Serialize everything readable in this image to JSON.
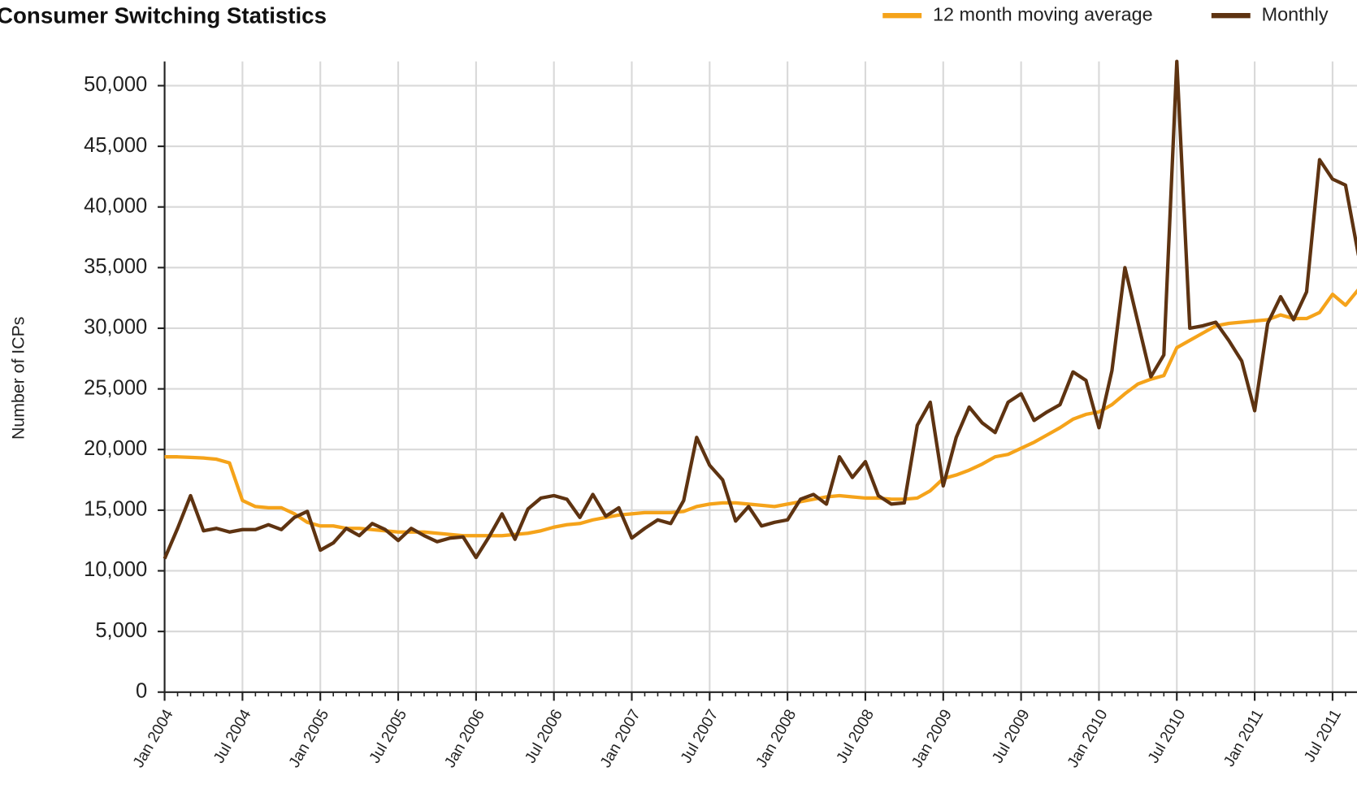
{
  "chart_data": {
    "type": "line",
    "title": "Consumer Switching Statistics",
    "y_label": "Number of ICPs",
    "x": [
      "2004-01",
      "2004-02",
      "2004-03",
      "2004-04",
      "2004-05",
      "2004-06",
      "2004-07",
      "2004-08",
      "2004-09",
      "2004-10",
      "2004-11",
      "2004-12",
      "2005-01",
      "2005-02",
      "2005-03",
      "2005-04",
      "2005-05",
      "2005-06",
      "2005-07",
      "2005-08",
      "2005-09",
      "2005-10",
      "2005-11",
      "2005-12",
      "2006-01",
      "2006-02",
      "2006-03",
      "2006-04",
      "2006-05",
      "2006-06",
      "2006-07",
      "2006-08",
      "2006-09",
      "2006-10",
      "2006-11",
      "2006-12",
      "2007-01",
      "2007-02",
      "2007-03",
      "2007-04",
      "2007-05",
      "2007-06",
      "2007-07",
      "2007-08",
      "2007-09",
      "2007-10",
      "2007-11",
      "2007-12",
      "2008-01",
      "2008-02",
      "2008-03",
      "2008-04",
      "2008-05",
      "2008-06",
      "2008-07",
      "2008-08",
      "2008-09",
      "2008-10",
      "2008-11",
      "2008-12",
      "2009-01",
      "2009-02",
      "2009-03",
      "2009-04",
      "2009-05",
      "2009-06",
      "2009-07",
      "2009-08",
      "2009-09",
      "2009-10",
      "2009-11",
      "2009-12",
      "2010-01",
      "2010-02",
      "2010-03",
      "2010-04",
      "2010-05",
      "2010-06",
      "2010-07",
      "2010-08",
      "2010-09",
      "2010-10",
      "2010-11",
      "2010-12",
      "2011-01",
      "2011-02",
      "2011-03",
      "2011-04",
      "2011-05",
      "2011-06",
      "2011-07",
      "2011-08",
      "2011-09"
    ],
    "series": [
      {
        "name": "12 month moving average",
        "color": "#f5a31a",
        "values": [
          19400,
          19400,
          19350,
          19300,
          19200,
          18900,
          15800,
          15300,
          15200,
          15200,
          14700,
          14000,
          13700,
          13700,
          13500,
          13500,
          13400,
          13300,
          13200,
          13200,
          13200,
          13100,
          13000,
          12900,
          12900,
          12900,
          12900,
          13000,
          13100,
          13300,
          13600,
          13800,
          13900,
          14200,
          14400,
          14600,
          14700,
          14800,
          14800,
          14800,
          14900,
          15300,
          15500,
          15600,
          15600,
          15500,
          15400,
          15300,
          15500,
          15700,
          15900,
          16100,
          16200,
          16100,
          16000,
          16000,
          15900,
          15900,
          16000,
          16600,
          17600,
          17900,
          18300,
          18800,
          19400,
          19600,
          20100,
          20600,
          21200,
          21800,
          22500,
          22900,
          23100,
          23700,
          24600,
          25400,
          25800,
          26100,
          28400,
          29000,
          29600,
          30200,
          30400,
          30500,
          30600,
          30700,
          31100,
          30800,
          30800,
          31300,
          32800,
          31900,
          33200
        ]
      },
      {
        "name": "Monthly",
        "color": "#5e3311",
        "values": [
          11000,
          13500,
          16200,
          13300,
          13500,
          13200,
          13400,
          13400,
          13800,
          13400,
          14400,
          14900,
          11700,
          12300,
          13500,
          12900,
          13900,
          13400,
          12500,
          13500,
          12900,
          12400,
          12700,
          12800,
          11100,
          12800,
          14700,
          12600,
          15100,
          16000,
          16200,
          15900,
          14400,
          16300,
          14500,
          15200,
          12700,
          13500,
          14200,
          13900,
          15800,
          21000,
          18700,
          17500,
          14100,
          15300,
          13700,
          14000,
          14200,
          15900,
          16300,
          15500,
          19400,
          17700,
          19000,
          16200,
          15500,
          15600,
          22000,
          23900,
          17000,
          21000,
          23500,
          22200,
          21400,
          23900,
          24600,
          22400,
          23100,
          23700,
          26400,
          25700,
          21800,
          26500,
          35000,
          30500,
          26000,
          27800,
          52000,
          30000,
          30200,
          30500,
          29000,
          27300,
          23200,
          30400,
          32600,
          30700,
          33000,
          43900,
          42300,
          41800,
          36000
        ]
      }
    ],
    "xlim": [
      "2004-01",
      "2011-09"
    ],
    "xticks": [
      {
        "value": "2004-01",
        "label": "Jan 2004"
      },
      {
        "value": "2004-07",
        "label": "Jul 2004"
      },
      {
        "value": "2005-01",
        "label": "Jan 2005"
      },
      {
        "value": "2005-07",
        "label": "Jul 2005"
      },
      {
        "value": "2006-01",
        "label": "Jan 2006"
      },
      {
        "value": "2006-07",
        "label": "Jul 2006"
      },
      {
        "value": "2007-01",
        "label": "Jan 2007"
      },
      {
        "value": "2007-07",
        "label": "Jul 2007"
      },
      {
        "value": "2008-01",
        "label": "Jan 2008"
      },
      {
        "value": "2008-07",
        "label": "Jul 2008"
      },
      {
        "value": "2009-01",
        "label": "Jan 2009"
      },
      {
        "value": "2009-07",
        "label": "Jul 2009"
      },
      {
        "value": "2010-01",
        "label": "Jan 2010"
      },
      {
        "value": "2010-07",
        "label": "Jul 2010"
      },
      {
        "value": "2011-01",
        "label": "Jan 2011"
      },
      {
        "value": "2011-07",
        "label": "Jul 2011"
      }
    ],
    "ylim": [
      0,
      52000
    ],
    "yticks": [
      0,
      {
        "value": 5000,
        "label": "5,000"
      },
      {
        "value": 10000,
        "label": "10,000"
      },
      {
        "value": 15000,
        "label": "15,000"
      },
      {
        "value": 20000,
        "label": "20,000"
      },
      {
        "value": 25000,
        "label": "25,000"
      },
      {
        "value": 30000,
        "label": "30,000"
      },
      {
        "value": 35000,
        "label": "35,000"
      },
      {
        "value": 40000,
        "label": "40,000"
      },
      {
        "value": 45000,
        "label": "45,000"
      },
      {
        "value": 50000,
        "label": "50,000"
      }
    ],
    "grid": true,
    "legend": "top-right"
  }
}
